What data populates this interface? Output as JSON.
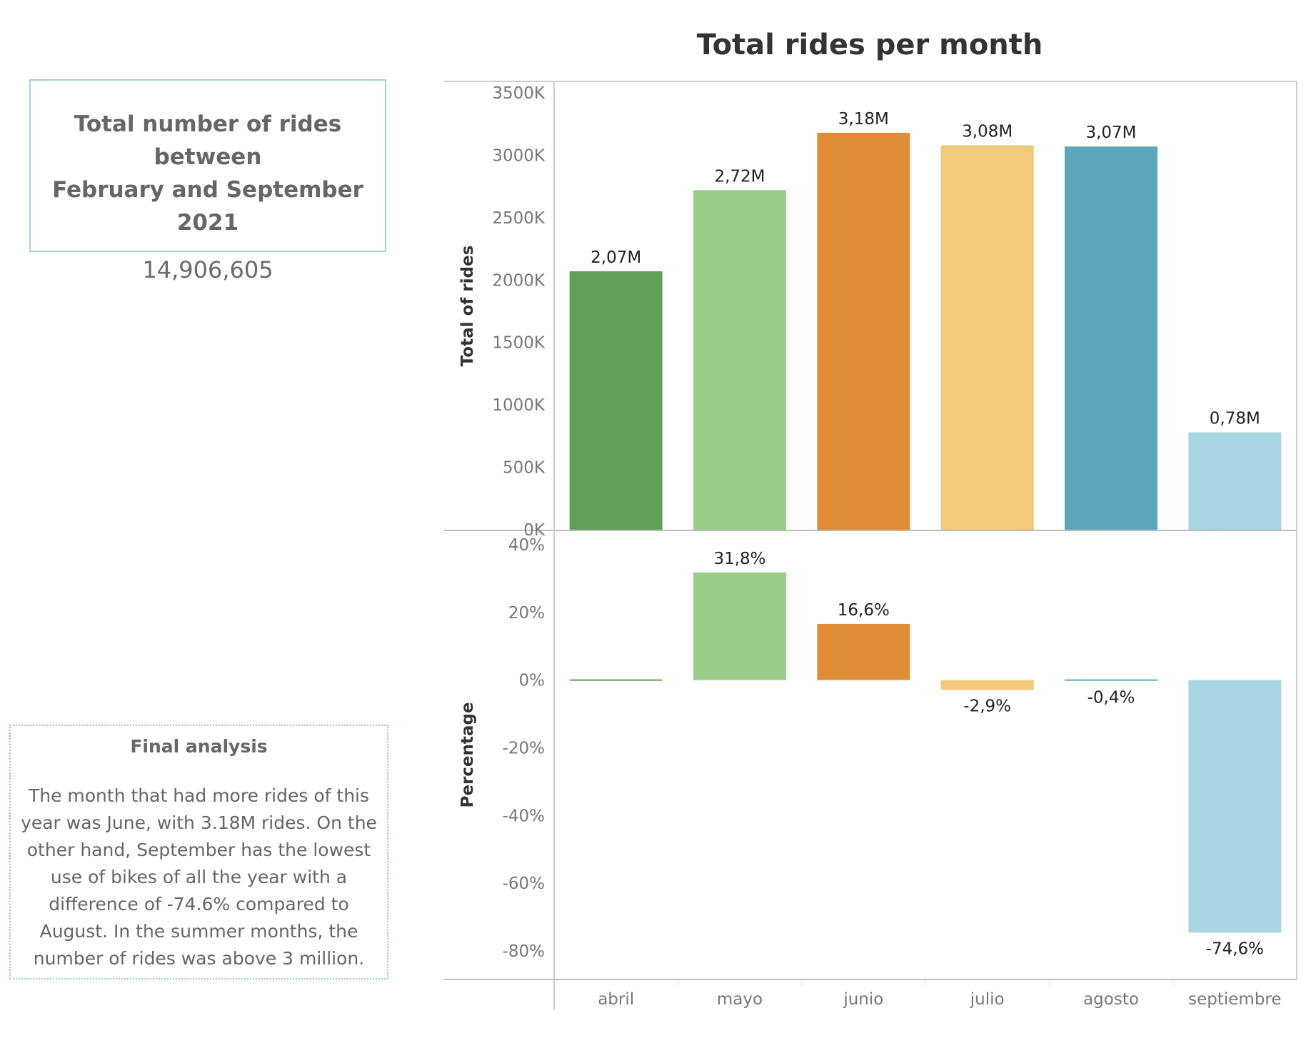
{
  "kpi": {
    "title_line1": "Total number of rides between",
    "title_line2": "February and September 2021",
    "value": "14,906,605"
  },
  "analysis": {
    "title": "Final analysis",
    "text": "The month that had more rides of this year was June, with 3.18M rides. On the other hand, September has the lowest use of bikes of all the year with a difference of -74.6% compared to August. In the summer months, the number of rides was above 3 million."
  },
  "chart_data": {
    "type": "bar",
    "title": "Total rides per month",
    "categories": [
      "abril",
      "mayo",
      "junio",
      "julio",
      "agosto",
      "septiembre"
    ],
    "colors": [
      "#62a057",
      "#98ce87",
      "#df8e37",
      "#f2c87b",
      "#5da7bb",
      "#a7d6e2"
    ],
    "panels": [
      {
        "ylabel": "Total of rides",
        "ylim": [
          0,
          3500
        ],
        "ticks": [
          0,
          500,
          1000,
          1500,
          2000,
          2500,
          3000,
          3500
        ],
        "tick_labels": [
          "0K",
          "500K",
          "1000K",
          "1500K",
          "2000K",
          "2500K",
          "3000K",
          "3500K"
        ],
        "values": [
          2070,
          2720,
          3180,
          3080,
          3070,
          780
        ],
        "data_labels": [
          "2,07M",
          "2,72M",
          "3,18M",
          "3,08M",
          "3,07M",
          "0,78M"
        ]
      },
      {
        "ylabel": "Percentage",
        "ylim": [
          -80,
          40
        ],
        "ticks": [
          40,
          20,
          0,
          -20,
          -40,
          -60,
          -80
        ],
        "tick_labels": [
          "40%",
          "20%",
          "0%",
          "-20%",
          "-40%",
          "-60%",
          "-80%"
        ],
        "values": [
          0,
          31.8,
          16.6,
          -2.9,
          -0.4,
          -74.6
        ],
        "data_labels": [
          "",
          "31,8%",
          "16,6%",
          "-2,9%",
          "-0,4%",
          "-74,6%"
        ]
      }
    ]
  }
}
